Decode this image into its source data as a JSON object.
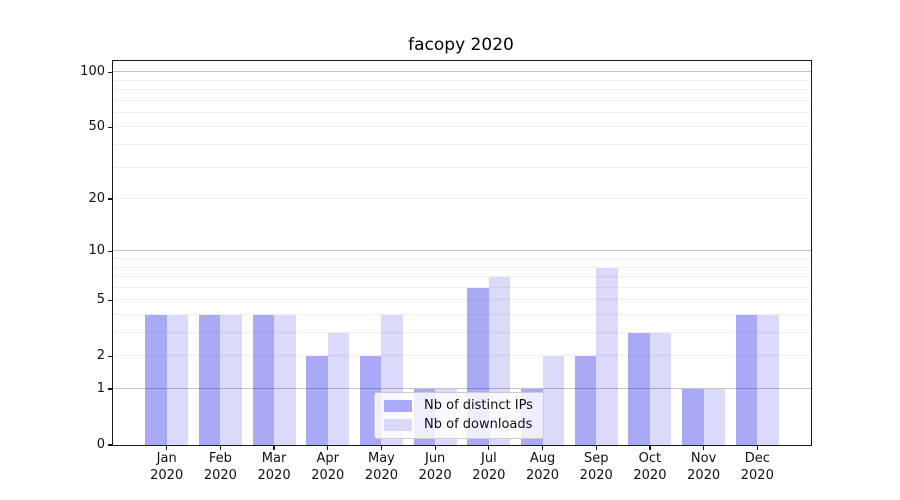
{
  "title": "facopy 2020",
  "chart_data": {
    "type": "bar",
    "title": "facopy 2020",
    "xlabel": "",
    "ylabel": "",
    "yscale": "log1p",
    "ylim": [
      0,
      115
    ],
    "grid": true,
    "legend_position": "lower-center",
    "categories": [
      "Jan 2020",
      "Feb 2020",
      "Mar 2020",
      "Apr 2020",
      "May 2020",
      "Jun 2020",
      "Jul 2020",
      "Aug 2020",
      "Sep 2020",
      "Oct 2020",
      "Nov 2020",
      "Dec 2020"
    ],
    "series": [
      {
        "name": "Nb of distinct IPs",
        "color": "#aaaaf8",
        "fill": "rgba(10,10,230,0.35)",
        "values": [
          4,
          4,
          4,
          2,
          2,
          1,
          6,
          1,
          2,
          3,
          1,
          4
        ]
      },
      {
        "name": "Nb of downloads",
        "color": "#dadaf8",
        "fill": "rgba(10,10,230,0.15)",
        "values": [
          4,
          4,
          4,
          3,
          4,
          1,
          7,
          2,
          8,
          3,
          1,
          4
        ]
      }
    ],
    "ytick_values": [
      0,
      1,
      2,
      5,
      10,
      20,
      50,
      100
    ],
    "major_gridlines": [
      1,
      10,
      100
    ],
    "minor_gridlines": [
      2,
      3,
      4,
      5,
      6,
      7,
      8,
      9,
      20,
      30,
      40,
      50,
      60,
      70,
      80,
      90
    ],
    "grid_major_color": "#c3c3c3",
    "grid_minor_color": "#eeeeee",
    "spine_color": "#1a1a1a"
  }
}
